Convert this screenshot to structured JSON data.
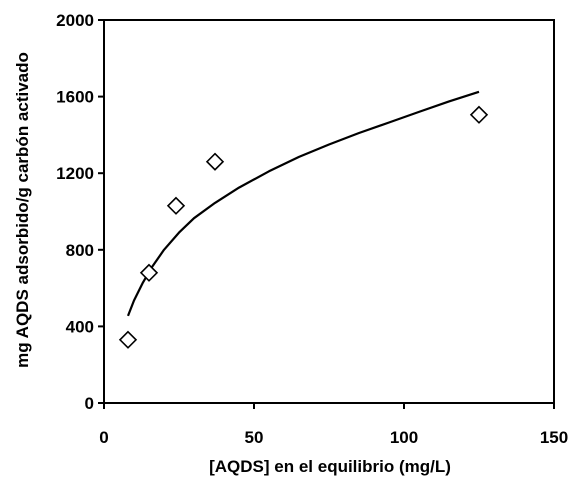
{
  "chart_data": {
    "type": "scatter",
    "title": "",
    "xlabel": "[AQDS] en el equilibrio (mg/L)",
    "ylabel": "mg AQDS adsorbido/g carbón activado",
    "xlim": [
      0,
      150
    ],
    "ylim": [
      0,
      2000
    ],
    "x_ticks": [
      0,
      50,
      100,
      150
    ],
    "y_ticks": [
      0,
      400,
      800,
      1200,
      1600,
      2000
    ],
    "grid": false,
    "legend": "none",
    "series": [
      {
        "kind": "markers",
        "marker": "diamond-open",
        "x": [
          8,
          15,
          24,
          37,
          125
        ],
        "y": [
          330,
          680,
          1030,
          1260,
          1505
        ]
      },
      {
        "kind": "line",
        "x": [
          8,
          10,
          13,
          16,
          20,
          25,
          30,
          37,
          45,
          55,
          65,
          75,
          85,
          95,
          105,
          115,
          125
        ],
        "y": [
          455,
          535,
          630,
          710,
          800,
          890,
          965,
          1045,
          1125,
          1210,
          1285,
          1350,
          1410,
          1465,
          1520,
          1575,
          1625
        ]
      }
    ],
    "colors": {
      "axis": "#000000",
      "marker": "#000000",
      "line": "#000000"
    }
  }
}
